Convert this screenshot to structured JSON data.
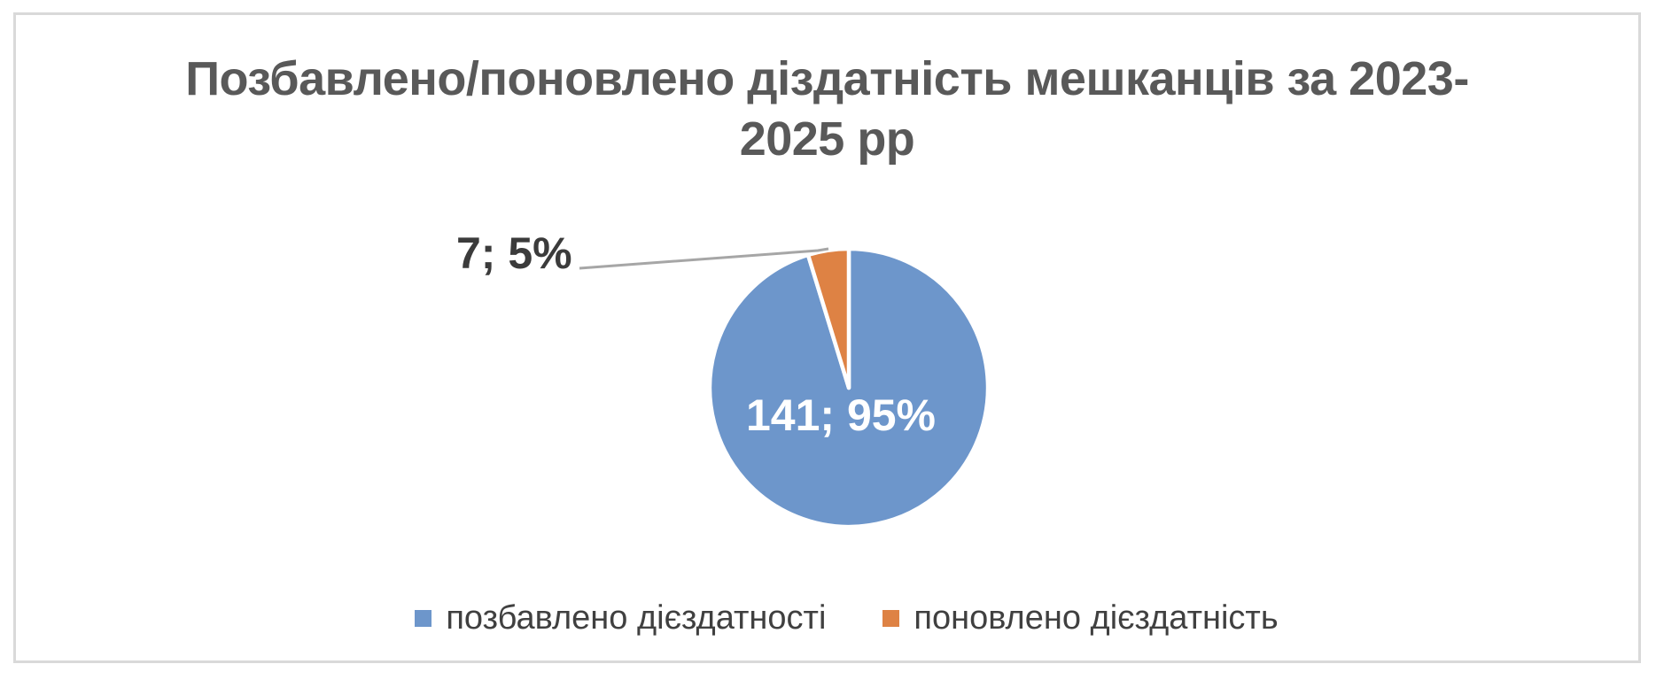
{
  "chart": {
    "title_line1": "Позбавлено/поновлено діздатність мешканців за 2023-",
    "title_line2": "2025 рр"
  },
  "chart_data": {
    "type": "pie",
    "title": "Позбавлено/поновлено діздатність мешканців за 2023-2025 рр",
    "categories": [
      "позбавлено дієздатності",
      "поновлено дієздатність"
    ],
    "values": [
      141,
      7
    ],
    "percentages": [
      95,
      5
    ],
    "colors": [
      "#6D96CB",
      "#DE8244"
    ],
    "data_labels": [
      "141; 95%",
      "7; 5%"
    ],
    "label_format": "value; percent",
    "legend_position": "bottom",
    "slice_border_color": "#ffffff",
    "leader_line_color": "#A6A6A6",
    "title_color": "#595959",
    "frame_border_color": "#D9D9D9"
  },
  "legend": {
    "items": [
      {
        "label": "позбавлено дієздатності",
        "color": "#6D96CB"
      },
      {
        "label": "поновлено дієздатність",
        "color": "#DE8244"
      }
    ]
  }
}
